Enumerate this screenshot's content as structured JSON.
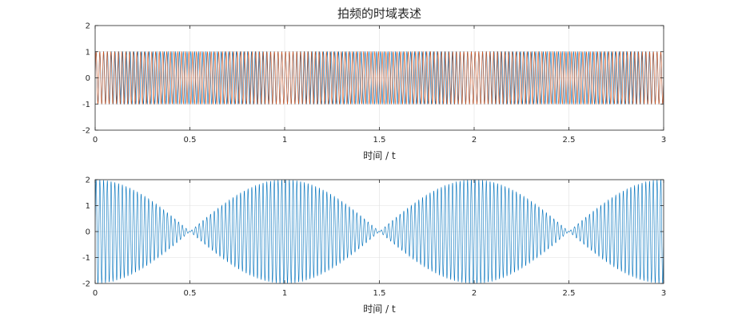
{
  "chart_data": [
    {
      "type": "line",
      "title": "拍频的时域表述",
      "xlabel": "时间 / t",
      "ylabel": "",
      "xlim": [
        0,
        3
      ],
      "ylim": [
        -2,
        2
      ],
      "xticks": [
        0,
        0.5,
        1,
        1.5,
        2,
        2.5,
        3
      ],
      "xtick_labels": [
        "0",
        "0.5",
        "1",
        "1.5",
        "2",
        "2.5",
        "3"
      ],
      "yticks": [
        -2,
        -1,
        0,
        1,
        2
      ],
      "ytick_labels": [
        "-2",
        "-1",
        "0",
        "1",
        "2"
      ],
      "grid": true,
      "series": [
        {
          "color": "#0072BD",
          "amplitude": 1,
          "frequency_hz": 50
        },
        {
          "color": "#D95319",
          "amplitude": 1,
          "frequency_hz": 51
        }
      ]
    },
    {
      "type": "line",
      "title": "",
      "xlabel": "时间 / t",
      "ylabel": "",
      "xlim": [
        0,
        3
      ],
      "ylim": [
        -2,
        2
      ],
      "xticks": [
        0,
        0.5,
        1,
        1.5,
        2,
        2.5,
        3
      ],
      "xtick_labels": [
        "0",
        "0.5",
        "1",
        "1.5",
        "2",
        "2.5",
        "3"
      ],
      "yticks": [
        -2,
        -1,
        0,
        1,
        2
      ],
      "ytick_labels": [
        "-2",
        "-1",
        "0",
        "1",
        "2"
      ],
      "grid": true,
      "series": [
        {
          "color": "#0072BD",
          "carrier_hz": 50.5,
          "envelope_amplitude": 2,
          "envelope_zeros_at": [
            0.5,
            1.5,
            2.5
          ]
        }
      ]
    }
  ]
}
